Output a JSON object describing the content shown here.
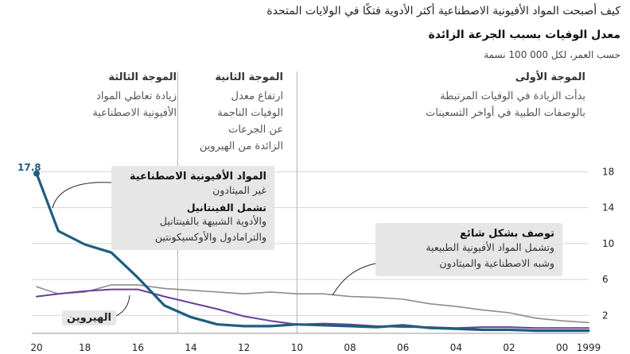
{
  "headline": "كيف أصبحت المواد الأفيونية الاصطناعية أكثر الأدوية فتكًا في الولايات المتحدة",
  "chart_data": {
    "type": "line",
    "title": "معدل الوفيات بسبب الجرعة الزائدة",
    "subtitle": "حسب العمر، لكل 000 100 نسمة",
    "x": [
      1999,
      2000,
      2001,
      2002,
      2003,
      2004,
      2005,
      2006,
      2007,
      2008,
      2009,
      2010,
      2011,
      2012,
      2013,
      2014,
      2015,
      2016,
      2017,
      2018,
      2019,
      2020
    ],
    "x_tick_labels": [
      "1999",
      "00",
      "02",
      "04",
      "06",
      "08",
      "10",
      "12",
      "14",
      "16",
      "18",
      "20"
    ],
    "x_tick_values": [
      1999,
      2000,
      2002,
      2004,
      2006,
      2008,
      2010,
      2012,
      2014,
      2016,
      2018,
      2020
    ],
    "x_reversed": true,
    "ylim": [
      0,
      19
    ],
    "y_ticks": [
      2,
      6,
      10,
      14,
      18
    ],
    "grid": true,
    "series": [
      {
        "key": "synthetic",
        "color": "#1d5f7e",
        "values": [
          0.3,
          0.3,
          0.3,
          0.4,
          0.4,
          0.5,
          0.6,
          0.9,
          0.7,
          0.8,
          0.9,
          1.0,
          0.8,
          0.8,
          1.0,
          1.8,
          3.1,
          6.2,
          9.0,
          9.9,
          11.4,
          17.8
        ]
      },
      {
        "key": "heroin",
        "color": "#6a3fa0",
        "values": [
          0.6,
          0.6,
          0.6,
          0.7,
          0.7,
          0.6,
          0.7,
          0.7,
          0.8,
          1.0,
          1.1,
          1.0,
          1.4,
          1.9,
          2.7,
          3.4,
          4.1,
          4.9,
          4.9,
          4.7,
          4.4,
          4.1
        ]
      },
      {
        "key": "common",
        "color": "#8c8c8c",
        "values": [
          1.2,
          1.4,
          1.7,
          2.3,
          2.6,
          3.0,
          3.3,
          3.8,
          4.0,
          4.1,
          4.4,
          4.4,
          4.6,
          4.4,
          4.6,
          4.8,
          5.0,
          5.4,
          5.4,
          4.6,
          4.4,
          5.2
        ]
      }
    ],
    "end_label": "17.8"
  },
  "waves": [
    {
      "title": "الموجة الأولى",
      "desc": [
        "بدأت الزيادة في الوفيات المرتبطة",
        "بالوصفات الطبية في أواخر التسعينات"
      ]
    },
    {
      "title": "الموجة الثانية",
      "desc": [
        "ارتفاع معدل",
        "الوفيات الناجمة",
        "عن الجرعات",
        "الزائدة من الهيروين"
      ]
    },
    {
      "title": "الموجة الثالثة",
      "desc": [
        "زيادة تعاطي المواد",
        "الأفيونية الاصطناعية"
      ]
    }
  ],
  "annotations": {
    "synthetic": {
      "head": "المواد الأفيونية الاصطناعية",
      "line1": "غير الميثادون",
      "subhead": "تشمل الفينتانيل",
      "line2": "والأدوية الشبيهة بالفينتانيل",
      "line3": "والترامادول والأوكسيكونتين"
    },
    "common": {
      "head": "توصف بشكل شائع",
      "line1": "وتشمل المواد الأفيونية الطبيعية",
      "line2": "وشبه الاصطناعية والميثادون"
    },
    "heroin": "الهيروين"
  }
}
